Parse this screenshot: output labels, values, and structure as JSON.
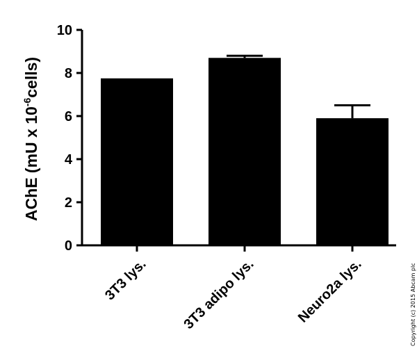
{
  "chart_data": {
    "type": "bar",
    "categories": [
      "3T3 lys.",
      "3T3 adipo lys.",
      "Neuro2a lys."
    ],
    "values": [
      7.75,
      8.7,
      5.9
    ],
    "error_upper": [
      0.05,
      0.1,
      0.6
    ],
    "ylabel_main": "AChE (mU x 10",
    "ylabel_sup": "-6",
    "ylabel_end": "cells)",
    "ylim": [
      0,
      10
    ],
    "yticks": [
      0,
      2,
      4,
      6,
      8,
      10
    ],
    "ytick_labels": [
      "0",
      "2",
      "4",
      "6",
      "8",
      "10"
    ],
    "bar_color": "#000000",
    "grid": false,
    "legend": "none"
  },
  "copyright": "Copyright (c) 2015 Abcam plc"
}
